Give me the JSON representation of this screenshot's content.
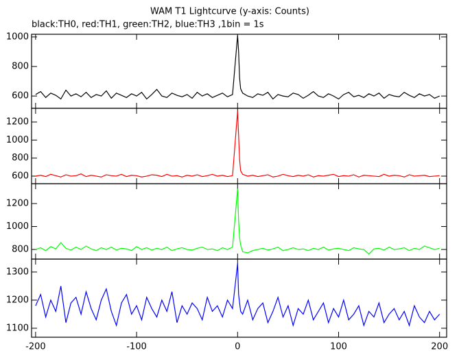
{
  "chart_data": [
    {
      "type": "line",
      "title": "WAM T1 Lightcurve (y-axis: Counts)",
      "subtitle": "black:TH0, red:TH1, green:TH2, blue:TH3 ,1bin = 1s",
      "x": [
        -200,
        -195,
        -190,
        -185,
        -180,
        -175,
        -170,
        -165,
        -160,
        -155,
        -150,
        -145,
        -140,
        -135,
        -130,
        -125,
        -120,
        -115,
        -110,
        -105,
        -100,
        -95,
        -90,
        -85,
        -80,
        -75,
        -70,
        -65,
        -60,
        -55,
        -50,
        -45,
        -40,
        -35,
        -30,
        -25,
        -20,
        -15,
        -10,
        -5,
        0,
        1,
        2,
        3,
        5,
        10,
        15,
        20,
        25,
        30,
        35,
        40,
        45,
        50,
        55,
        60,
        65,
        70,
        75,
        80,
        85,
        90,
        95,
        100,
        105,
        110,
        115,
        120,
        125,
        130,
        135,
        140,
        145,
        150,
        155,
        160,
        165,
        170,
        175,
        180,
        185,
        190,
        195,
        200
      ],
      "xlim": [
        -204,
        207
      ],
      "ylim": [
        517,
        1018
      ],
      "yticks": [
        600,
        800,
        1000
      ],
      "series": [
        {
          "color": "#000000",
          "values": [
            610,
            630,
            590,
            620,
            605,
            580,
            640,
            600,
            615,
            595,
            625,
            590,
            610,
            600,
            635,
            585,
            620,
            605,
            590,
            615,
            600,
            625,
            580,
            610,
            645,
            600,
            590,
            620,
            605,
            595,
            610,
            585,
            625,
            600,
            615,
            590,
            605,
            620,
            595,
            610,
            1010,
            900,
            720,
            650,
            620,
            600,
            590,
            615,
            605,
            625,
            580,
            610,
            600,
            595,
            620,
            610,
            585,
            605,
            630,
            600,
            590,
            615,
            600,
            580,
            610,
            625,
            595,
            605,
            590,
            615,
            600,
            620,
            585,
            610,
            600,
            595,
            625,
            605,
            590,
            615,
            600,
            610,
            585,
            600
          ]
        }
      ]
    },
    {
      "type": "line",
      "x": [
        -200,
        -195,
        -190,
        -185,
        -180,
        -175,
        -170,
        -165,
        -160,
        -155,
        -150,
        -145,
        -140,
        -135,
        -130,
        -125,
        -120,
        -115,
        -110,
        -105,
        -100,
        -95,
        -90,
        -85,
        -80,
        -75,
        -70,
        -65,
        -60,
        -55,
        -50,
        -45,
        -40,
        -35,
        -30,
        -25,
        -20,
        -15,
        -10,
        -5,
        0,
        1,
        2,
        3,
        5,
        10,
        15,
        20,
        25,
        30,
        35,
        40,
        45,
        50,
        55,
        60,
        65,
        70,
        75,
        80,
        85,
        90,
        95,
        100,
        105,
        110,
        115,
        120,
        125,
        130,
        135,
        140,
        145,
        150,
        155,
        160,
        165,
        170,
        175,
        180,
        185,
        190,
        195,
        200
      ],
      "xlim": [
        -204,
        207
      ],
      "ylim": [
        516,
        1352
      ],
      "yticks": [
        600,
        800,
        1000,
        1200
      ],
      "series": [
        {
          "color": "#ff0000",
          "values": [
            600,
            610,
            595,
            620,
            605,
            590,
            615,
            600,
            605,
            625,
            595,
            610,
            600,
            590,
            615,
            605,
            600,
            620,
            595,
            610,
            605,
            590,
            600,
            615,
            610,
            595,
            620,
            600,
            605,
            590,
            610,
            600,
            615,
            595,
            605,
            620,
            600,
            610,
            595,
            605,
            1320,
            1050,
            780,
            660,
            620,
            600,
            610,
            595,
            605,
            615,
            590,
            600,
            620,
            605,
            595,
            610,
            600,
            615,
            590,
            605,
            600,
            610,
            620,
            595,
            605,
            600,
            615,
            590,
            610,
            605,
            600,
            595,
            620,
            600,
            610,
            605,
            590,
            615,
            600,
            605,
            610,
            595,
            600,
            605
          ]
        }
      ]
    },
    {
      "type": "line",
      "x": [
        -200,
        -195,
        -190,
        -185,
        -180,
        -175,
        -170,
        -165,
        -160,
        -155,
        -150,
        -145,
        -140,
        -135,
        -130,
        -125,
        -120,
        -115,
        -110,
        -105,
        -100,
        -95,
        -90,
        -85,
        -80,
        -75,
        -70,
        -65,
        -60,
        -55,
        -50,
        -45,
        -40,
        -35,
        -30,
        -25,
        -20,
        -15,
        -10,
        -5,
        0,
        1,
        2,
        3,
        5,
        10,
        15,
        20,
        25,
        30,
        35,
        40,
        45,
        50,
        55,
        60,
        65,
        70,
        75,
        80,
        85,
        90,
        95,
        100,
        105,
        110,
        115,
        120,
        125,
        130,
        135,
        140,
        145,
        150,
        155,
        160,
        165,
        170,
        175,
        180,
        185,
        190,
        195,
        200
      ],
      "xlim": [
        -204,
        207
      ],
      "ylim": [
        716,
        1373
      ],
      "yticks": [
        800,
        1000,
        1200
      ],
      "series": [
        {
          "color": "#00ff00",
          "values": [
            800,
            815,
            790,
            825,
            805,
            860,
            810,
            795,
            820,
            800,
            830,
            805,
            790,
            815,
            800,
            820,
            795,
            810,
            805,
            790,
            825,
            800,
            815,
            795,
            810,
            800,
            820,
            790,
            805,
            815,
            800,
            795,
            810,
            820,
            800,
            805,
            790,
            815,
            800,
            820,
            1330,
            1050,
            900,
            840,
            780,
            770,
            790,
            800,
            810,
            795,
            805,
            820,
            790,
            800,
            815,
            800,
            805,
            790,
            810,
            800,
            820,
            795,
            805,
            810,
            800,
            790,
            815,
            805,
            800,
            760,
            805,
            810,
            795,
            820,
            800,
            805,
            815,
            790,
            810,
            800,
            830,
            815,
            800,
            810
          ]
        }
      ]
    },
    {
      "type": "line",
      "x": [
        -200,
        -195,
        -190,
        -185,
        -180,
        -175,
        -170,
        -165,
        -160,
        -155,
        -150,
        -145,
        -140,
        -135,
        -130,
        -125,
        -120,
        -115,
        -110,
        -105,
        -100,
        -95,
        -90,
        -85,
        -80,
        -75,
        -70,
        -65,
        -60,
        -55,
        -50,
        -45,
        -40,
        -35,
        -30,
        -25,
        -20,
        -15,
        -10,
        -5,
        0,
        1,
        2,
        3,
        5,
        10,
        15,
        20,
        25,
        30,
        35,
        40,
        45,
        50,
        55,
        60,
        65,
        70,
        75,
        80,
        85,
        90,
        95,
        100,
        105,
        110,
        115,
        120,
        125,
        130,
        135,
        140,
        145,
        150,
        155,
        160,
        165,
        170,
        175,
        180,
        185,
        190,
        195,
        200
      ],
      "xlim": [
        -204,
        207
      ],
      "ylim": [
        1068,
        1346
      ],
      "yticks": [
        1100,
        1200,
        1300
      ],
      "xticks": [
        -200,
        -100,
        0,
        100,
        200
      ],
      "series": [
        {
          "color": "#0000ff",
          "values": [
            1180,
            1220,
            1140,
            1200,
            1160,
            1250,
            1120,
            1190,
            1210,
            1150,
            1230,
            1170,
            1130,
            1200,
            1240,
            1160,
            1110,
            1190,
            1220,
            1150,
            1180,
            1130,
            1210,
            1170,
            1140,
            1200,
            1160,
            1230,
            1120,
            1180,
            1150,
            1190,
            1170,
            1130,
            1210,
            1160,
            1180,
            1140,
            1200,
            1170,
            1330,
            1220,
            1190,
            1160,
            1150,
            1200,
            1130,
            1170,
            1190,
            1120,
            1160,
            1210,
            1140,
            1180,
            1110,
            1170,
            1150,
            1200,
            1130,
            1160,
            1190,
            1120,
            1170,
            1140,
            1200,
            1130,
            1150,
            1180,
            1110,
            1160,
            1140,
            1190,
            1120,
            1150,
            1170,
            1130,
            1160,
            1110,
            1180,
            1140,
            1120,
            1160,
            1130,
            1150
          ]
        }
      ]
    }
  ]
}
